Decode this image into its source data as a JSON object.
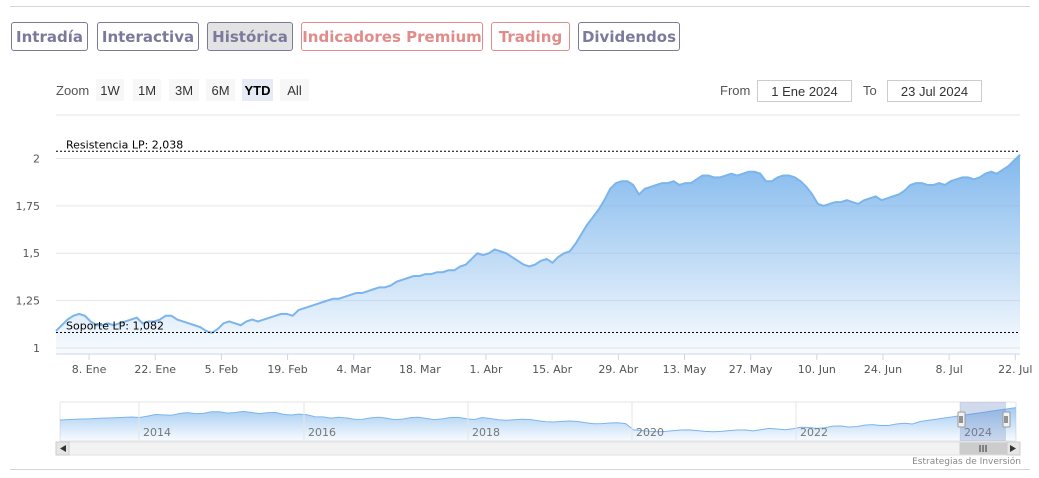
{
  "tabs": [
    {
      "label": "Intradía",
      "style": "purple"
    },
    {
      "label": "Interactiva",
      "style": "purple"
    },
    {
      "label": "Histórica",
      "style": "active"
    },
    {
      "label": "Indicadores Premium",
      "style": "red"
    },
    {
      "label": "Trading",
      "style": "red"
    },
    {
      "label": "Dividendos",
      "style": "purple"
    }
  ],
  "range_selector": {
    "zoom_label": "Zoom",
    "buttons": [
      "1W",
      "1M",
      "3M",
      "6M",
      "YTD",
      "All"
    ],
    "selected": "YTD",
    "from_label": "From",
    "from_value": "1 Ene 2024",
    "to_label": "To",
    "to_value": "23 Jul 2024"
  },
  "chart_data": {
    "type": "area",
    "title": "",
    "xlabel": "",
    "ylabel": "",
    "ylim": [
      1,
      2.05
    ],
    "yticks": [
      "1",
      "1,25",
      "1,5",
      "1,75",
      "2"
    ],
    "xticks": [
      "8. Ene",
      "22. Ene",
      "5. Feb",
      "19. Feb",
      "4. Mar",
      "18. Mar",
      "1. Abr",
      "15. Abr",
      "29. Abr",
      "13. May",
      "27. May",
      "10. Jun",
      "24. Jun",
      "8. Jul",
      "22. Jul"
    ],
    "x_start": "2024-01-01",
    "x_end": "2024-07-23",
    "grid": true,
    "legend": "none",
    "series": [
      {
        "values": [
          1.09,
          1.12,
          1.15,
          1.17,
          1.18,
          1.17,
          1.14,
          1.12,
          1.12,
          1.13,
          1.12,
          1.13,
          1.14,
          1.15,
          1.16,
          1.13,
          1.14,
          1.14,
          1.15,
          1.17,
          1.17,
          1.15,
          1.14,
          1.13,
          1.12,
          1.11,
          1.09,
          1.08,
          1.1,
          1.13,
          1.14,
          1.13,
          1.12,
          1.14,
          1.15,
          1.14,
          1.15,
          1.16,
          1.17,
          1.18,
          1.18,
          1.17,
          1.2,
          1.21,
          1.22,
          1.23,
          1.24,
          1.25,
          1.26,
          1.26,
          1.27,
          1.28,
          1.29,
          1.29,
          1.3,
          1.31,
          1.32,
          1.32,
          1.33,
          1.35,
          1.36,
          1.37,
          1.38,
          1.38,
          1.39,
          1.39,
          1.4,
          1.4,
          1.41,
          1.41,
          1.43,
          1.44,
          1.47,
          1.5,
          1.49,
          1.5,
          1.52,
          1.51,
          1.5,
          1.48,
          1.46,
          1.44,
          1.43,
          1.44,
          1.46,
          1.47,
          1.45,
          1.48,
          1.5,
          1.51,
          1.55,
          1.6,
          1.65,
          1.69,
          1.73,
          1.78,
          1.84,
          1.87,
          1.88,
          1.88,
          1.86,
          1.81,
          1.84,
          1.85,
          1.86,
          1.87,
          1.87,
          1.88,
          1.86,
          1.87,
          1.87,
          1.89,
          1.91,
          1.91,
          1.9,
          1.9,
          1.91,
          1.92,
          1.91,
          1.92,
          1.93,
          1.93,
          1.92,
          1.88,
          1.88,
          1.9,
          1.91,
          1.91,
          1.9,
          1.88,
          1.85,
          1.81,
          1.76,
          1.75,
          1.76,
          1.77,
          1.77,
          1.78,
          1.77,
          1.76,
          1.78,
          1.79,
          1.8,
          1.78,
          1.79,
          1.8,
          1.81,
          1.83,
          1.86,
          1.87,
          1.87,
          1.86,
          1.86,
          1.87,
          1.86,
          1.88,
          1.89,
          1.9,
          1.9,
          1.89,
          1.9,
          1.92,
          1.93,
          1.92,
          1.94,
          1.96,
          1.99,
          2.02
        ]
      }
    ],
    "annotations": [
      {
        "label": "Resistencia LP: 2,038",
        "value": 2.038
      },
      {
        "label": "Soporte LP: 1,082",
        "value": 1.082
      }
    ],
    "navigator": {
      "labels": [
        "2014",
        "2016",
        "2018",
        "2020",
        "2022",
        "2024"
      ]
    }
  },
  "colors": {
    "line": "#7cb5ec",
    "fill_top": "#7cb5ec",
    "grid": "#e6e6e6",
    "tick_text": "#555555"
  },
  "credit": "Estrategias de Inversión",
  "icons": {
    "scroll_left": "triangle-left-icon",
    "scroll_right": "triangle-right-icon",
    "scroll_grip": "grip-lines-icon"
  }
}
